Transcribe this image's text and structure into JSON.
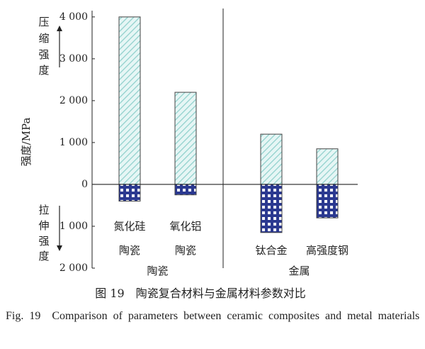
{
  "chart_data": {
    "type": "bar",
    "y_label": "强度/MPa",
    "categories": [
      [
        "氮化硅",
        "陶瓷"
      ],
      [
        "氧化铝",
        "陶瓷"
      ],
      [
        "钛合金"
      ],
      [
        "高强度钢"
      ]
    ],
    "groups": [
      {
        "name": "陶瓷",
        "categories": [
          0,
          1
        ]
      },
      {
        "name": "金属",
        "categories": [
          2,
          3
        ]
      }
    ],
    "series": [
      {
        "name": "压缩强度",
        "color": "#8fd0cc",
        "values": [
          4000,
          2200,
          1200,
          850
        ]
      },
      {
        "name": "拉伸强度",
        "color": "#2b3990",
        "values": [
          -400,
          -250,
          -1150,
          -800
        ]
      }
    ],
    "ylim": [
      -2000,
      4150
    ],
    "yticks": [
      {
        "value": 4000,
        "label": "4 000"
      },
      {
        "value": 3000,
        "label": "3 000"
      },
      {
        "value": 2000,
        "label": "2 000"
      },
      {
        "value": 1000,
        "label": "1 000"
      },
      0,
      {
        "value": -1000,
        "label": "1 000"
      },
      {
        "value": -2000,
        "label": "2 000"
      }
    ]
  },
  "caption": {
    "zh": "图 19　陶瓷复合材料与金属材料参数对比",
    "en": "Fig. 19　Comparison of parameters between ceramic composites and metal materials"
  }
}
